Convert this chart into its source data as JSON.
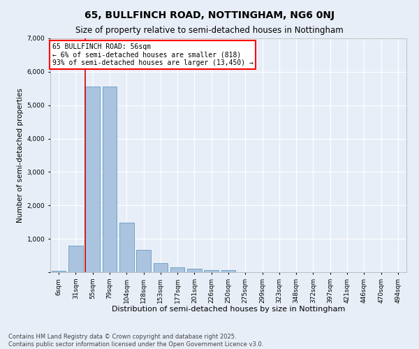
{
  "title": "65, BULLFINCH ROAD, NOTTINGHAM, NG6 0NJ",
  "subtitle": "Size of property relative to semi-detached houses in Nottingham",
  "xlabel": "Distribution of semi-detached houses by size in Nottingham",
  "ylabel": "Number of semi-detached properties",
  "categories": [
    "6sqm",
    "31sqm",
    "55sqm",
    "79sqm",
    "104sqm",
    "128sqm",
    "153sqm",
    "177sqm",
    "201sqm",
    "226sqm",
    "250sqm",
    "275sqm",
    "299sqm",
    "323sqm",
    "348sqm",
    "372sqm",
    "397sqm",
    "421sqm",
    "446sqm",
    "470sqm",
    "494sqm"
  ],
  "values": [
    50,
    790,
    5550,
    5550,
    1480,
    670,
    270,
    150,
    100,
    70,
    70,
    0,
    0,
    0,
    0,
    0,
    0,
    0,
    0,
    0,
    0
  ],
  "bar_color": "#aac4e0",
  "bar_edge_color": "#6699bb",
  "vline_color": "#cc0000",
  "annotation_box_text": "65 BULLFINCH ROAD: 56sqm\n← 6% of semi-detached houses are smaller (818)\n93% of semi-detached houses are larger (13,450) →",
  "ylim": [
    0,
    7000
  ],
  "yticks": [
    0,
    1000,
    2000,
    3000,
    4000,
    5000,
    6000,
    7000
  ],
  "bg_color": "#e8eef8",
  "plot_bg_color": "#e8eef8",
  "grid_color": "#ffffff",
  "footnote": "Contains HM Land Registry data © Crown copyright and database right 2025.\nContains public sector information licensed under the Open Government Licence v3.0.",
  "title_fontsize": 10,
  "subtitle_fontsize": 8.5,
  "xlabel_fontsize": 8,
  "ylabel_fontsize": 7.5,
  "tick_fontsize": 6.5,
  "annot_fontsize": 7,
  "footnote_fontsize": 6
}
